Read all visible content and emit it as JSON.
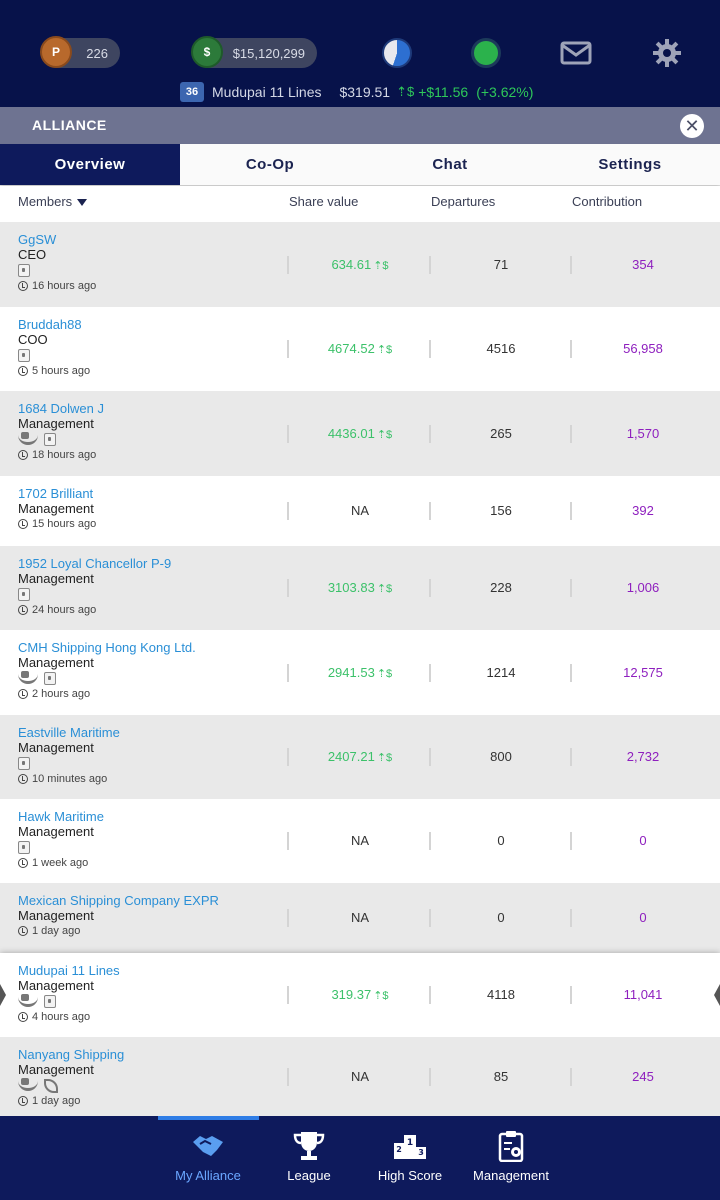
{
  "status": {
    "points": "226",
    "cash": "$15,120,299",
    "points_coin": "P",
    "cash_coin": "$"
  },
  "ticker": {
    "level": "36",
    "company": "Mudupai 11 Lines",
    "price": "$319.51",
    "change": "+$11.56",
    "change_pct": "(+3.62%)"
  },
  "alliance": {
    "title": "ALLIANCE",
    "close": "✕"
  },
  "tabs": [
    {
      "label": "Overview"
    },
    {
      "label": "Co-Op"
    },
    {
      "label": "Chat"
    },
    {
      "label": "Settings"
    }
  ],
  "columns": {
    "members": "Members",
    "share": "Share value",
    "departures": "Departures",
    "contribution": "Contribution"
  },
  "members": [
    {
      "name": "GgSW",
      "role": "CEO",
      "seen": "16 hours ago",
      "share": "634.61",
      "departures": "71",
      "contribution": "354"
    },
    {
      "name": "Bruddah88",
      "role": "COO",
      "seen": "5 hours ago",
      "share": "4674.52",
      "departures": "4516",
      "contribution": "56,958"
    },
    {
      "name": "1684 Dolwen J",
      "role": "Management",
      "seen": "18 hours ago",
      "share": "4436.01",
      "departures": "265",
      "contribution": "1,570"
    },
    {
      "name": "1702 Brilliant",
      "role": "Management",
      "seen": "15 hours ago",
      "share": "NA",
      "departures": "156",
      "contribution": "392"
    },
    {
      "name": "1952 Loyal Chancellor P-9",
      "role": "Management",
      "seen": "24 hours ago",
      "share": "3103.83",
      "departures": "228",
      "contribution": "1,006"
    },
    {
      "name": "CMH Shipping Hong Kong Ltd.",
      "role": "Management",
      "seen": "2 hours ago",
      "share": "2941.53",
      "departures": "1214",
      "contribution": "12,575"
    },
    {
      "name": "Eastville Maritime",
      "role": "Management",
      "seen": "10 minutes ago",
      "share": "2407.21",
      "departures": "800",
      "contribution": "2,732"
    },
    {
      "name": "Hawk Maritime",
      "role": "Management",
      "seen": "1 week ago",
      "share": "NA",
      "departures": "0",
      "contribution": "0"
    },
    {
      "name": "Mexican Shipping Company EXPR",
      "role": "Management",
      "seen": "1 day ago",
      "share": "NA",
      "departures": "0",
      "contribution": "0"
    },
    {
      "name": "Mudupai 11 Lines",
      "role": "Management",
      "seen": "4 hours ago",
      "share": "319.37",
      "departures": "4118",
      "contribution": "11,041"
    },
    {
      "name": "Nanyang Shipping",
      "role": "Management",
      "seen": "1 day ago",
      "share": "NA",
      "departures": "85",
      "contribution": "245"
    }
  ],
  "nav": [
    {
      "label": "My Alliance"
    },
    {
      "label": "League"
    },
    {
      "label": "High Score"
    },
    {
      "label": "Management"
    }
  ]
}
